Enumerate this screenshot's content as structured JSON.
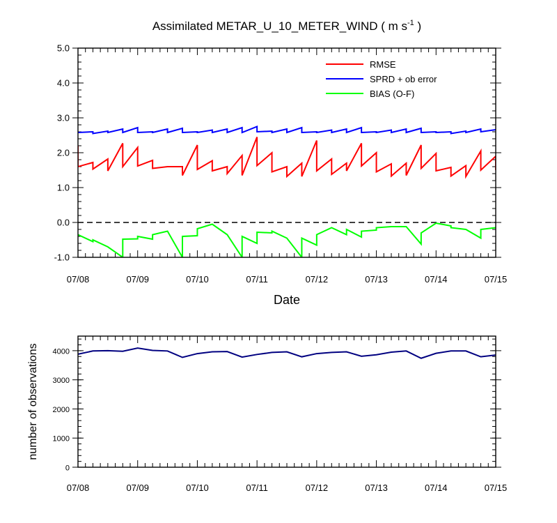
{
  "chart_data": [
    {
      "type": "line",
      "title": "Assimilated METAR_U_10_METER_WIND ( m s",
      "title_sup": "-1",
      "title_end": " )",
      "xlabel": "Date",
      "ylabel": "",
      "ylim": [
        -1.0,
        5.0
      ],
      "yticks": [
        "-1.0",
        "0.0",
        "1.0",
        "2.0",
        "3.0",
        "4.0",
        "5.0"
      ],
      "xlim": [
        0,
        7
      ],
      "xtick_labels": [
        "07/08",
        "07/09",
        "07/10",
        "07/11",
        "07/12",
        "07/13",
        "07/14",
        "07/15"
      ],
      "zero_line": true,
      "legend_position": "top-right",
      "series": [
        {
          "name": "RMSE",
          "color": "#ff0000",
          "points": [
            [
              0.0,
              2.2
            ],
            [
              0.0,
              1.6
            ],
            [
              0.25,
              1.72
            ],
            [
              0.25,
              1.53
            ],
            [
              0.5,
              1.82
            ],
            [
              0.5,
              1.48
            ],
            [
              0.75,
              2.27
            ],
            [
              0.75,
              1.6
            ],
            [
              1.0,
              2.15
            ],
            [
              1.0,
              1.62
            ],
            [
              1.25,
              1.78
            ],
            [
              1.25,
              1.55
            ],
            [
              1.5,
              1.6
            ],
            [
              1.5,
              1.6
            ],
            [
              1.75,
              1.6
            ],
            [
              1.75,
              1.35
            ],
            [
              2.0,
              2.22
            ],
            [
              2.0,
              1.52
            ],
            [
              2.25,
              1.77
            ],
            [
              2.25,
              1.48
            ],
            [
              2.5,
              1.6
            ],
            [
              2.5,
              1.4
            ],
            [
              2.75,
              1.92
            ],
            [
              2.75,
              1.35
            ],
            [
              3.0,
              2.45
            ],
            [
              3.0,
              1.63
            ],
            [
              3.25,
              2.0
            ],
            [
              3.25,
              1.45
            ],
            [
              3.5,
              1.6
            ],
            [
              3.5,
              1.32
            ],
            [
              3.75,
              1.7
            ],
            [
              3.75,
              1.32
            ],
            [
              4.0,
              2.35
            ],
            [
              4.0,
              1.48
            ],
            [
              4.25,
              1.82
            ],
            [
              4.25,
              1.38
            ],
            [
              4.5,
              1.7
            ],
            [
              4.5,
              1.48
            ],
            [
              4.75,
              2.27
            ],
            [
              4.75,
              1.62
            ],
            [
              5.0,
              2.0
            ],
            [
              5.0,
              1.45
            ],
            [
              5.25,
              1.68
            ],
            [
              5.25,
              1.33
            ],
            [
              5.5,
              1.7
            ],
            [
              5.5,
              1.35
            ],
            [
              5.75,
              2.22
            ],
            [
              5.75,
              1.55
            ],
            [
              6.0,
              1.98
            ],
            [
              6.0,
              1.48
            ],
            [
              6.25,
              1.58
            ],
            [
              6.25,
              1.33
            ],
            [
              6.5,
              1.63
            ],
            [
              6.5,
              1.32
            ],
            [
              6.75,
              2.05
            ],
            [
              6.75,
              1.5
            ],
            [
              7.0,
              1.9
            ],
            [
              7.0,
              1.5
            ]
          ]
        },
        {
          "name": "SPRD + ob error",
          "color": "#0000ff",
          "points": [
            [
              0.0,
              2.58
            ],
            [
              0.25,
              2.6
            ],
            [
              0.25,
              2.55
            ],
            [
              0.5,
              2.62
            ],
            [
              0.5,
              2.58
            ],
            [
              0.75,
              2.68
            ],
            [
              0.75,
              2.58
            ],
            [
              1.0,
              2.72
            ],
            [
              1.0,
              2.58
            ],
            [
              1.25,
              2.6
            ],
            [
              1.25,
              2.58
            ],
            [
              1.5,
              2.68
            ],
            [
              1.5,
              2.58
            ],
            [
              1.75,
              2.7
            ],
            [
              1.75,
              2.58
            ],
            [
              2.0,
              2.6
            ],
            [
              2.0,
              2.58
            ],
            [
              2.25,
              2.65
            ],
            [
              2.25,
              2.58
            ],
            [
              2.5,
              2.68
            ],
            [
              2.5,
              2.58
            ],
            [
              2.75,
              2.72
            ],
            [
              2.75,
              2.58
            ],
            [
              3.0,
              2.75
            ],
            [
              3.0,
              2.6
            ],
            [
              3.25,
              2.62
            ],
            [
              3.25,
              2.58
            ],
            [
              3.5,
              2.68
            ],
            [
              3.5,
              2.58
            ],
            [
              3.75,
              2.72
            ],
            [
              3.75,
              2.58
            ],
            [
              4.0,
              2.6
            ],
            [
              4.0,
              2.58
            ],
            [
              4.25,
              2.65
            ],
            [
              4.25,
              2.58
            ],
            [
              4.5,
              2.68
            ],
            [
              4.5,
              2.58
            ],
            [
              4.75,
              2.72
            ],
            [
              4.75,
              2.58
            ],
            [
              5.0,
              2.6
            ],
            [
              5.0,
              2.58
            ],
            [
              5.25,
              2.65
            ],
            [
              5.25,
              2.58
            ],
            [
              5.5,
              2.68
            ],
            [
              5.5,
              2.58
            ],
            [
              5.75,
              2.7
            ],
            [
              5.75,
              2.58
            ],
            [
              6.0,
              2.6
            ],
            [
              6.0,
              2.58
            ],
            [
              6.25,
              2.6
            ],
            [
              6.25,
              2.55
            ],
            [
              6.5,
              2.62
            ],
            [
              6.5,
              2.58
            ],
            [
              6.75,
              2.68
            ],
            [
              6.75,
              2.6
            ],
            [
              7.0,
              2.66
            ]
          ]
        },
        {
          "name": "BIAS (O-F)",
          "color": "#00ff00",
          "points": [
            [
              0.0,
              -0.35
            ],
            [
              0.25,
              -0.55
            ],
            [
              0.25,
              -0.5
            ],
            [
              0.5,
              -0.7
            ],
            [
              0.75,
              -1.0
            ],
            [
              0.75,
              -0.48
            ],
            [
              1.0,
              -0.47
            ],
            [
              1.0,
              -0.4
            ],
            [
              1.25,
              -0.48
            ],
            [
              1.25,
              -0.35
            ],
            [
              1.5,
              -0.25
            ],
            [
              1.75,
              -1.0
            ],
            [
              1.75,
              -0.4
            ],
            [
              2.0,
              -0.38
            ],
            [
              2.0,
              -0.18
            ],
            [
              2.25,
              -0.05
            ],
            [
              2.5,
              -0.35
            ],
            [
              2.75,
              -1.0
            ],
            [
              2.75,
              -0.4
            ],
            [
              3.0,
              -0.6
            ],
            [
              3.0,
              -0.28
            ],
            [
              3.25,
              -0.3
            ],
            [
              3.25,
              -0.25
            ],
            [
              3.5,
              -0.45
            ],
            [
              3.75,
              -1.0
            ],
            [
              3.75,
              -0.45
            ],
            [
              4.0,
              -0.65
            ],
            [
              4.0,
              -0.35
            ],
            [
              4.25,
              -0.15
            ],
            [
              4.5,
              -0.35
            ],
            [
              4.5,
              -0.2
            ],
            [
              4.75,
              -0.42
            ],
            [
              4.75,
              -0.25
            ],
            [
              5.0,
              -0.22
            ],
            [
              5.0,
              -0.15
            ],
            [
              5.25,
              -0.12
            ],
            [
              5.5,
              -0.12
            ],
            [
              5.75,
              -0.62
            ],
            [
              5.75,
              -0.3
            ],
            [
              6.0,
              -0.02
            ],
            [
              6.25,
              -0.1
            ],
            [
              6.25,
              -0.15
            ],
            [
              6.5,
              -0.2
            ],
            [
              6.75,
              -0.45
            ],
            [
              6.75,
              -0.2
            ],
            [
              7.0,
              -0.15
            ]
          ]
        }
      ]
    },
    {
      "type": "line",
      "title": "",
      "xlabel": "",
      "ylabel": "number of observations",
      "ylim": [
        0,
        4500
      ],
      "yticks": [
        "0",
        "1000",
        "2000",
        "3000",
        "4000"
      ],
      "xlim": [
        0,
        7
      ],
      "xtick_labels": [
        "07/08",
        "07/09",
        "07/10",
        "07/11",
        "07/12",
        "07/13",
        "07/14",
        "07/15"
      ],
      "series": [
        {
          "name": "",
          "color": "#000080",
          "points": [
            [
              0.0,
              3880
            ],
            [
              0.25,
              3990
            ],
            [
              0.5,
              4000
            ],
            [
              0.75,
              3980
            ],
            [
              1.0,
              4090
            ],
            [
              1.25,
              4010
            ],
            [
              1.5,
              3990
            ],
            [
              1.75,
              3770
            ],
            [
              2.0,
              3900
            ],
            [
              2.25,
              3960
            ],
            [
              2.5,
              3970
            ],
            [
              2.75,
              3780
            ],
            [
              3.0,
              3870
            ],
            [
              3.25,
              3940
            ],
            [
              3.5,
              3960
            ],
            [
              3.75,
              3790
            ],
            [
              4.0,
              3900
            ],
            [
              4.25,
              3940
            ],
            [
              4.5,
              3960
            ],
            [
              4.75,
              3810
            ],
            [
              5.0,
              3860
            ],
            [
              5.25,
              3950
            ],
            [
              5.5,
              3990
            ],
            [
              5.75,
              3740
            ],
            [
              6.0,
              3910
            ],
            [
              6.25,
              3990
            ],
            [
              6.5,
              3990
            ],
            [
              6.75,
              3790
            ],
            [
              7.0,
              3850
            ]
          ]
        }
      ]
    }
  ]
}
